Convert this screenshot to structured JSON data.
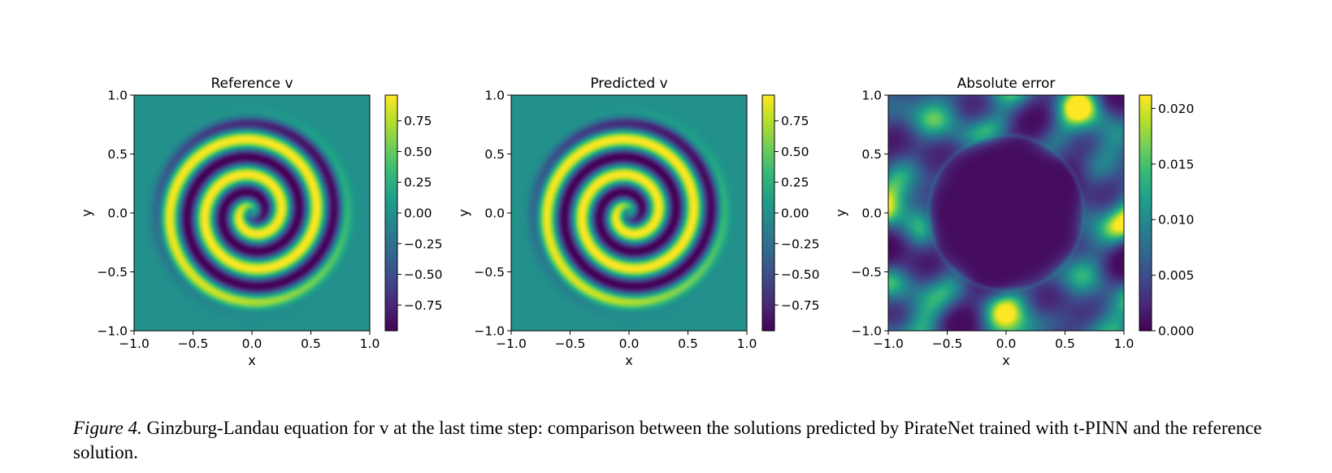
{
  "figure": {
    "caption_label": "Figure 4.",
    "caption_text": " Ginzburg-Landau equation for v at the last time step: comparison between the solutions predicted by PirateNet trained with t-PINN and the reference solution."
  },
  "colors": {
    "viridis": [
      "#440154",
      "#482878",
      "#3e4989",
      "#31688e",
      "#26828e",
      "#1f9e89",
      "#35b779",
      "#6ece58",
      "#b5de2b",
      "#fde725"
    ]
  },
  "chart_data": [
    {
      "type": "heatmap",
      "title": "Reference v",
      "xlabel": "x",
      "ylabel": "y",
      "xlim": [
        -1.0,
        1.0
      ],
      "ylim": [
        -1.0,
        1.0
      ],
      "x_ticks": [
        "−1.0",
        "−0.5",
        "0.0",
        "0.5",
        "1.0"
      ],
      "y_ticks": [
        "−1.0",
        "−0.5",
        "0.0",
        "0.5",
        "1.0"
      ],
      "colormap": "viridis",
      "colorbar_range": [
        -0.96,
        0.96
      ],
      "colorbar_ticks": [
        {
          "value": 0.75,
          "label": "0.75"
        },
        {
          "value": 0.5,
          "label": "0.50"
        },
        {
          "value": 0.25,
          "label": "0.25"
        },
        {
          "value": 0.0,
          "label": "0.00"
        },
        {
          "value": -0.25,
          "label": "−0.25"
        },
        {
          "value": -0.5,
          "label": "−0.50"
        },
        {
          "value": -0.75,
          "label": "−0.75"
        }
      ],
      "field": "Single-armed spiral wave centred at the origin (about 2.5 turns, outer radius about 0.8); values near 0 outside the spiral, range about -0.96 to 0.96"
    },
    {
      "type": "heatmap",
      "title": "Predicted v",
      "xlabel": "x",
      "ylabel": "y",
      "xlim": [
        -1.0,
        1.0
      ],
      "ylim": [
        -1.0,
        1.0
      ],
      "x_ticks": [
        "−1.0",
        "−0.5",
        "0.0",
        "0.5",
        "1.0"
      ],
      "y_ticks": [
        "−1.0",
        "−0.5",
        "0.0",
        "0.5",
        "1.0"
      ],
      "colormap": "viridis",
      "colorbar_range": [
        -0.96,
        0.96
      ],
      "colorbar_ticks": [
        {
          "value": 0.75,
          "label": "0.75"
        },
        {
          "value": 0.5,
          "label": "0.50"
        },
        {
          "value": 0.25,
          "label": "0.25"
        },
        {
          "value": 0.0,
          "label": "0.00"
        },
        {
          "value": -0.25,
          "label": "−0.25"
        },
        {
          "value": -0.5,
          "label": "−0.50"
        },
        {
          "value": -0.75,
          "label": "−0.75"
        }
      ],
      "field": "Spiral wave visually identical to the reference solution"
    },
    {
      "type": "heatmap",
      "title": "Absolute error",
      "xlabel": "x",
      "ylabel": "y",
      "xlim": [
        -1.0,
        1.0
      ],
      "ylim": [
        -1.0,
        1.0
      ],
      "x_ticks": [
        "−1.0",
        "−0.5",
        "0.0",
        "0.5",
        "1.0"
      ],
      "y_ticks": [
        "−1.0",
        "−0.5",
        "0.0",
        "0.5",
        "1.0"
      ],
      "colormap": "viridis",
      "colorbar_range": [
        0.0,
        0.0212
      ],
      "colorbar_ticks": [
        {
          "value": 0.02,
          "label": "0.020"
        },
        {
          "value": 0.015,
          "label": "0.015"
        },
        {
          "value": 0.01,
          "label": "0.010"
        },
        {
          "value": 0.005,
          "label": "0.005"
        },
        {
          "value": 0.0,
          "label": "0.000"
        }
      ],
      "field": "Error near 0 inside a disk of radius about 0.65; larger patchy error (up to about 0.021) in the outer region and corners"
    }
  ]
}
